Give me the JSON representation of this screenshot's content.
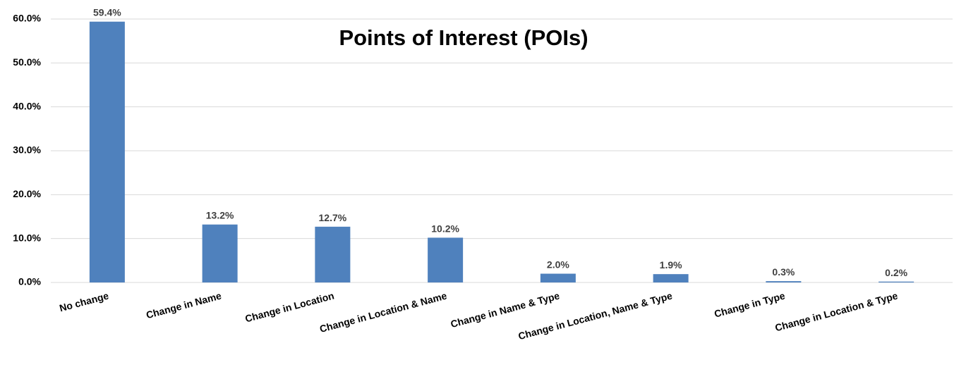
{
  "chart_data": {
    "type": "bar",
    "title": "Points of Interest (POIs)",
    "categories": [
      "No change",
      "Change in Name",
      "Change in Location",
      "Change in Location & Name",
      "Change in Name & Type",
      "Change in Location, Name & Type",
      "Change in Type",
      "Change in Location & Type"
    ],
    "values": [
      59.4,
      13.2,
      12.7,
      10.2,
      2.0,
      1.9,
      0.3,
      0.2
    ],
    "value_labels": [
      "59.4%",
      "13.2%",
      "12.7%",
      "10.2%",
      "2.0%",
      "1.9%",
      "0.3%",
      "0.2%"
    ],
    "color": "#4f81bd",
    "ylim": [
      0,
      60
    ],
    "yticks": [
      {
        "value": 0,
        "label": "0.0%"
      },
      {
        "value": 10,
        "label": "10.0%"
      },
      {
        "value": 20,
        "label": "20.0%"
      },
      {
        "value": 30,
        "label": "30.0%"
      },
      {
        "value": 40,
        "label": "40.0%"
      },
      {
        "value": 50,
        "label": "50.0%"
      },
      {
        "value": 60,
        "label": "60.0%"
      }
    ],
    "grid": true
  }
}
